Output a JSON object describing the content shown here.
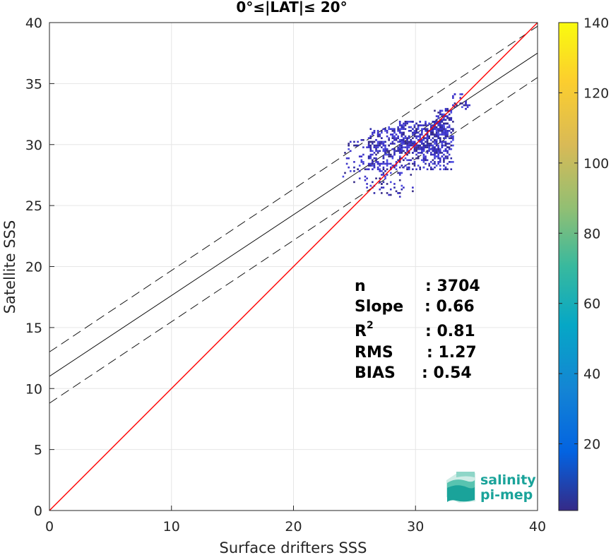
{
  "chart_data": {
    "type": "scatter",
    "title": "0°≤|LAT|≤ 20°",
    "xlabel": "Surface drifters SSS",
    "ylabel": "Satellite SSS",
    "xlim": [
      0,
      40
    ],
    "ylim": [
      0,
      40
    ],
    "xticks": [
      0,
      10,
      20,
      30,
      40
    ],
    "yticks": [
      0,
      5,
      10,
      15,
      20,
      25,
      30,
      35,
      40
    ],
    "grid": true,
    "colorbar": {
      "ticks": [
        20,
        40,
        60,
        80,
        100,
        120,
        140
      ],
      "range": [
        1,
        140
      ],
      "colormap": "parula"
    },
    "lines": [
      {
        "kind": "one-to-one",
        "color": "#ff0000",
        "x": [
          0,
          40
        ],
        "y": [
          0,
          40
        ]
      },
      {
        "kind": "regression",
        "color": "#000000",
        "style": "solid",
        "x": [
          0,
          40
        ],
        "y": [
          11.0,
          37.5
        ]
      },
      {
        "kind": "upper-bound",
        "color": "#000000",
        "style": "dashed",
        "x": [
          0,
          40
        ],
        "y": [
          13.0,
          39.7
        ]
      },
      {
        "kind": "lower-bound",
        "color": "#000000",
        "style": "dashed",
        "x": [
          0,
          40
        ],
        "y": [
          8.8,
          35.5
        ]
      }
    ],
    "density_clusters": [
      {
        "x0": 26.0,
        "x1": 33.0,
        "y0": 28.0,
        "y1": 31.5,
        "count": 520
      },
      {
        "x0": 28.5,
        "x1": 32.5,
        "y0": 29.5,
        "y1": 32.0,
        "count": 320
      },
      {
        "x0": 24.0,
        "x1": 27.5,
        "y0": 26.5,
        "y1": 30.5,
        "count": 90
      },
      {
        "x0": 31.5,
        "x1": 33.0,
        "y0": 31.0,
        "y1": 33.0,
        "count": 80
      },
      {
        "x0": 33.0,
        "x1": 34.3,
        "y0": 33.0,
        "y1": 34.3,
        "count": 25
      },
      {
        "x0": 26.5,
        "x1": 30.0,
        "y0": 25.8,
        "y1": 28.0,
        "count": 40
      }
    ],
    "stats": [
      {
        "label": "n",
        "value": ": 3704"
      },
      {
        "label": "Slope",
        "value": ": 0.66"
      },
      {
        "label": "R",
        "sup": "2",
        "value": ": 0.81"
      },
      {
        "label": "RMS",
        "value": ": 1.27"
      },
      {
        "label": "BIAS",
        "value": ": 0.54"
      }
    ]
  },
  "logo": {
    "line1": "salinity",
    "line2": "pi-mep"
  },
  "colors": {
    "one_to_one": "#ff0000",
    "fit_lines": "#000000",
    "points": "#3d35c8",
    "grid": "#e6e6e6",
    "logo": "#1aa39a"
  }
}
